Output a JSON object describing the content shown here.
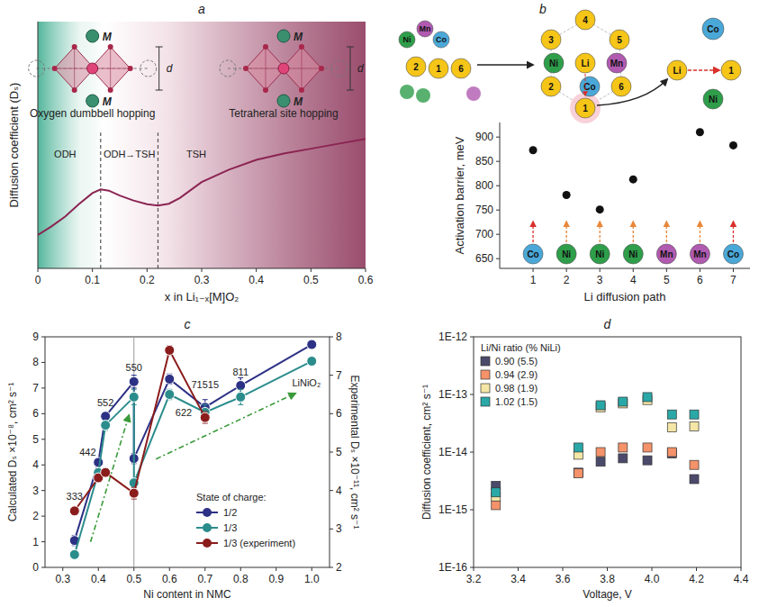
{
  "chart_data": [
    {
      "type": "line",
      "panel": "a",
      "xlabel": "x in Li₁₋ₓ[M]O₂",
      "ylabel": "Diffusion coefficient (Dₛ)",
      "x": [
        0,
        0.025,
        0.05,
        0.075,
        0.1,
        0.115,
        0.13,
        0.15,
        0.175,
        0.2,
        0.22,
        0.24,
        0.26,
        0.3,
        0.35,
        0.4,
        0.45,
        0.5,
        0.55,
        0.6
      ],
      "values": [
        0.135,
        0.17,
        0.21,
        0.26,
        0.305,
        0.32,
        0.315,
        0.295,
        0.275,
        0.26,
        0.255,
        0.262,
        0.285,
        0.35,
        0.4,
        0.44,
        0.465,
        0.485,
        0.505,
        0.525
      ],
      "color": "#8b2452",
      "xlim": [
        0,
        0.6
      ],
      "xticks": [
        0,
        0.1,
        0.2,
        0.3,
        0.4,
        0.5,
        0.6
      ],
      "ylim": [
        0,
        1
      ],
      "yticks": [],
      "tick_labels": "x",
      "dividers": [
        0.115,
        0.22
      ],
      "regions": [
        {
          "label": "ODH",
          "x": 0.05
        },
        {
          "label": "ODH→TSH",
          "x": 0.1675
        },
        {
          "label": "TSH",
          "x": 0.29
        }
      ],
      "insets": [
        {
          "caption": "Oxygen dumbbell hopping",
          "x": 0.1,
          "atom": "M",
          "distance": "d"
        },
        {
          "caption": "Tetraheral site hopping",
          "x": 0.45,
          "atom": "M",
          "distance": "d"
        }
      ]
    },
    {
      "type": "scatter",
      "panel": "b",
      "xlabel": "Li diffusion path",
      "ylabel": "Activation barrier, meV",
      "x": [
        1,
        2,
        3,
        4,
        5,
        6,
        7
      ],
      "values": [
        873,
        781,
        751,
        813,
        null,
        910,
        883
      ],
      "color": "#111111",
      "marker": "circle",
      "xlim": [
        0,
        7.5
      ],
      "xticks": [
        1,
        2,
        3,
        4,
        5,
        6,
        7
      ],
      "ylim": [
        630,
        930
      ],
      "yticks": [
        650,
        700,
        750,
        800,
        850,
        900
      ],
      "path_elements": [
        {
          "label": "Co",
          "color": "#4aa8d8"
        },
        {
          "label": "Ni",
          "color": "#2e9e4a"
        },
        {
          "label": "Ni",
          "color": "#2e9e4a"
        },
        {
          "label": "Ni",
          "color": "#2e9e4a"
        },
        {
          "label": "Mn",
          "color": "#b05ab0"
        },
        {
          "label": "Mn",
          "color": "#b05ab0"
        },
        {
          "label": "Co",
          "color": "#4aa8d8"
        }
      ],
      "schematic": [
        {
          "label": "Ni",
          "color": "#2e9e4a"
        },
        {
          "label": "Mn",
          "color": "#b05ab0"
        },
        {
          "label": "Co",
          "color": "#4aa8d8"
        },
        {
          "label": "2",
          "color": "#f5c518"
        },
        {
          "label": "1",
          "color": "#f5c518"
        },
        {
          "label": "6",
          "color": "#f5c518"
        },
        {
          "label": "4",
          "color": "#f5c518"
        },
        {
          "label": "3",
          "color": "#f5c518"
        },
        {
          "label": "5",
          "color": "#f5c518"
        },
        {
          "label": "Ni",
          "color": "#2e9e4a"
        },
        {
          "label": "Li",
          "color": "#f5c518"
        },
        {
          "label": "Mn",
          "color": "#b05ab0"
        },
        {
          "label": "2",
          "color": "#f5c518"
        },
        {
          "label": "Co",
          "color": "#4aa8d8"
        },
        {
          "label": "6",
          "color": "#f5c518"
        },
        {
          "label": "1",
          "color": "#f5c518"
        },
        {
          "label": "Co",
          "color": "#4aa8d8"
        },
        {
          "label": "Li",
          "color": "#f5c518"
        },
        {
          "label": "1",
          "color": "#f5c518"
        },
        {
          "label": "Ni",
          "color": "#2e9e4a"
        }
      ]
    },
    {
      "type": "line",
      "panel": "c",
      "xlabel": "Ni content in NMC",
      "ylabel": "Calculated Dₛ ×10⁻⁸, cm² s⁻¹",
      "y2label": "Experimental Dₛ ×10⁻¹¹, cm² s⁻¹",
      "xlim": [
        0.25,
        1.05
      ],
      "xticks": [
        0.3,
        0.4,
        0.5,
        0.6,
        0.7,
        0.8,
        0.9,
        {
          "value": 1,
          "label": "1.0"
        }
      ],
      "ylim": [
        0,
        9
      ],
      "yticks": [
        0,
        1,
        2,
        3,
        4,
        5,
        6,
        7,
        8,
        9
      ],
      "y2lim": [
        2,
        8
      ],
      "y2ticks": [
        2,
        3,
        4,
        5,
        6,
        7,
        8
      ],
      "vline": 0.5,
      "marker": "circle",
      "legend": "lower right",
      "legend_title": "State of charge:",
      "series": [
        {
          "name": "1/2",
          "color": "#2d3185",
          "x": [
            0.333,
            0.4,
            0.42,
            0.5,
            0.5,
            0.6,
            0.7,
            0.8,
            1.0
          ],
          "values": [
            1.05,
            4.1,
            5.9,
            7.25,
            4.25,
            7.35,
            6.25,
            7.1,
            8.7
          ],
          "errors": [
            0.2,
            0.15,
            0.15,
            0.25,
            0.2,
            0.2,
            0.3,
            0.3,
            0.1
          ]
        },
        {
          "name": "1/3",
          "color": "#2b8c8c",
          "x": [
            0.333,
            0.4,
            0.42,
            0.5,
            0.5,
            0.6,
            0.7,
            0.8,
            1.0
          ],
          "values": [
            0.5,
            3.7,
            5.55,
            6.65,
            3.3,
            6.75,
            6.05,
            6.65,
            8.05
          ],
          "errors": [
            0.1,
            0.15,
            0.2,
            0.3,
            0.15,
            0.2,
            0.3,
            0.3,
            0.1
          ]
        },
        {
          "name": "1/3 (experiment)",
          "color": "#8b1c1c",
          "axis": "y2",
          "x": [
            0.333,
            0.4,
            0.42,
            0.5,
            0.6,
            0.7
          ],
          "values": [
            3.47,
            4.33,
            4.47,
            3.93,
            7.65,
            5.9
          ],
          "errors": [
            0.05,
            0.1,
            0.1,
            0.15,
            0.12,
            0.15
          ]
        }
      ],
      "annotations": [
        {
          "text": "333",
          "x": 0.333,
          "y": 2.65
        },
        {
          "text": "442",
          "x": 0.37,
          "y": 4.35
        },
        {
          "text": "552",
          "x": 0.42,
          "y": 6.3
        },
        {
          "text": "550",
          "x": 0.5,
          "y": 7.65
        },
        {
          "text": "622",
          "x": 0.64,
          "y": 5.9
        },
        {
          "text": "71515",
          "x": 0.7,
          "y": 7.0
        },
        {
          "text": "811",
          "x": 0.8,
          "y": 7.5
        },
        {
          "text": "LiNiO₂",
          "x": 0.985,
          "y": 7.05
        }
      ]
    },
    {
      "type": "scatter",
      "panel": "d",
      "xlabel": "Voltage, V",
      "ylabel": "Diffusion coefficient, cm² s⁻¹",
      "log": "y",
      "marker": "square",
      "x": [
        3.3,
        3.67,
        3.77,
        3.87,
        3.98,
        4.09,
        4.19
      ],
      "xlim": [
        3.2,
        4.4
      ],
      "xticks": [
        3.2,
        3.4,
        3.6,
        3.8,
        {
          "value": 4,
          "label": "4.0"
        },
        4.2,
        4.4
      ],
      "ylim": [
        1e-16,
        1e-12
      ],
      "yticks": [
        {
          "value": 1e-16,
          "label": "1E-16"
        },
        {
          "value": 1e-15,
          "label": "1E-15"
        },
        {
          "value": 1e-14,
          "label": "1E-14"
        },
        {
          "value": 1e-13,
          "label": "1E-13"
        },
        {
          "value": 1e-12,
          "label": "1E-12"
        }
      ],
      "legend": "upper left",
      "legend_title": "Li/Ni ratio (% NiLi)",
      "series": [
        {
          "name": "0.90 (5.5)",
          "color": "#4b4a6b",
          "values": [
            2.6e-15,
            4.4e-15,
            6.8e-15,
            7.8e-15,
            7.2e-15,
            9.5e-15,
            3.4e-15
          ]
        },
        {
          "name": "0.94 (2.9)",
          "color": "#f4926a",
          "values": [
            1.2e-15,
            4.3e-15,
            1e-14,
            1.2e-14,
            1.2e-14,
            1e-14,
            6e-15
          ]
        },
        {
          "name": "0.98 (1.9)",
          "color": "#f4e6a6",
          "values": [
            1.7e-15,
            9e-15,
            6e-14,
            7e-14,
            8e-14,
            2.7e-14,
            2.8e-14
          ]
        },
        {
          "name": "1.02 (1.5)",
          "color": "#2aa8a8",
          "values": [
            2e-15,
            1.2e-14,
            6.5e-14,
            7.5e-14,
            9e-14,
            4.5e-14,
            4.5e-14
          ]
        }
      ]
    }
  ]
}
